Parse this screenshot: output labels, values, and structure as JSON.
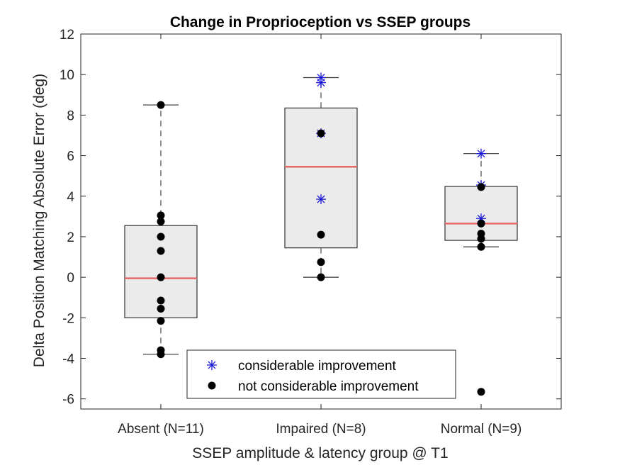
{
  "chart_data": {
    "type": "boxplot",
    "title": "Change in Proprioception vs SSEP groups",
    "xlabel": "SSEP amplitude & latency group @ T1",
    "ylabel": "Delta Position Matching Absolute Error (deg)",
    "ylim": [
      -6.5,
      12
    ],
    "yticks": [
      -6,
      -4,
      -2,
      0,
      2,
      4,
      6,
      8,
      10,
      12
    ],
    "ytick_labels": [
      "-6",
      "-4",
      "-2",
      "0",
      "2",
      "4",
      "6",
      "8",
      "10",
      "12"
    ],
    "categories": [
      "Absent (N=11)",
      "Impaired (N=8)",
      "Normal (N=9)"
    ],
    "boxes": [
      {
        "category": "Absent (N=11)",
        "whisker_low": -3.8,
        "q1": -2.0,
        "median": -0.05,
        "q3": 2.55,
        "whisker_high": 8.5
      },
      {
        "category": "Impaired (N=8)",
        "whisker_low": 0.0,
        "q1": 1.45,
        "median": 5.45,
        "q3": 8.35,
        "whisker_high": 9.85
      },
      {
        "category": "Normal (N=9)",
        "whisker_low": 1.5,
        "q1": 1.82,
        "median": 2.65,
        "q3": 4.48,
        "whisker_high": 6.1
      }
    ],
    "series": [
      {
        "name": "considerable improvement",
        "marker": "asterisk",
        "points": [
          {
            "category": "Impaired (N=8)",
            "y": 9.85
          },
          {
            "category": "Impaired (N=8)",
            "y": 9.6
          },
          {
            "category": "Impaired (N=8)",
            "y": 7.1
          },
          {
            "category": "Impaired (N=8)",
            "y": 3.85
          },
          {
            "category": "Normal (N=9)",
            "y": 6.1
          },
          {
            "category": "Normal (N=9)",
            "y": 4.55
          },
          {
            "category": "Normal (N=9)",
            "y": 2.9
          }
        ]
      },
      {
        "name": "not considerable improvement",
        "marker": "dot",
        "points": [
          {
            "category": "Absent (N=11)",
            "y": 8.5
          },
          {
            "category": "Absent (N=11)",
            "y": 3.05
          },
          {
            "category": "Absent (N=11)",
            "y": 2.75
          },
          {
            "category": "Absent (N=11)",
            "y": 2.0
          },
          {
            "category": "Absent (N=11)",
            "y": 1.3
          },
          {
            "category": "Absent (N=11)",
            "y": 0.0
          },
          {
            "category": "Absent (N=11)",
            "y": -1.15
          },
          {
            "category": "Absent (N=11)",
            "y": -1.55
          },
          {
            "category": "Absent (N=11)",
            "y": -2.15
          },
          {
            "category": "Absent (N=11)",
            "y": -3.6
          },
          {
            "category": "Absent (N=11)",
            "y": -3.8
          },
          {
            "category": "Impaired (N=8)",
            "y": 7.1
          },
          {
            "category": "Impaired (N=8)",
            "y": 2.1
          },
          {
            "category": "Impaired (N=8)",
            "y": 0.75
          },
          {
            "category": "Impaired (N=8)",
            "y": 0.0
          },
          {
            "category": "Normal (N=9)",
            "y": 4.45
          },
          {
            "category": "Normal (N=9)",
            "y": 2.65
          },
          {
            "category": "Normal (N=9)",
            "y": 2.15
          },
          {
            "category": "Normal (N=9)",
            "y": 1.9
          },
          {
            "category": "Normal (N=9)",
            "y": 1.5
          },
          {
            "category": "Normal (N=9)",
            "y": -5.65
          }
        ]
      }
    ],
    "legend": {
      "placement": "bottom-center",
      "entries": [
        "considerable improvement",
        "not considerable improvement"
      ]
    },
    "grid": false,
    "colors": {
      "box_fill": "#ebebeb",
      "box_edge": "#333333",
      "median": "#e8696b",
      "asterisk": "#1a1ad6",
      "dot": "#000000",
      "axis": "#262626"
    }
  }
}
